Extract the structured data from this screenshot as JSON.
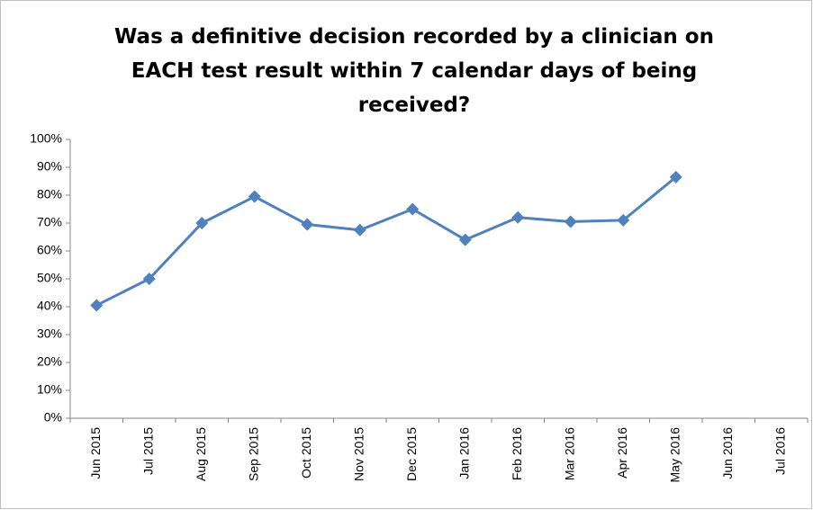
{
  "chart_data": {
    "type": "line",
    "title": "Was a definitive decision recorded by a clinician on EACH test result within 7 calendar days of being received?",
    "categories": [
      "Jun 2015",
      "Jul 2015",
      "Aug 2015",
      "Sep 2015",
      "Oct 2015",
      "Nov 2015",
      "Dec 2015",
      "Jan 2016",
      "Feb 2016",
      "Mar 2016",
      "Apr 2016",
      "May 2016",
      "Jun 2016",
      "Jul 2016"
    ],
    "series": [
      {
        "color": "#4f81bd",
        "values": [
          40.5,
          50,
          70,
          79.5,
          69.5,
          67.5,
          75,
          64,
          72,
          70.5,
          71,
          86.5,
          null,
          null
        ]
      }
    ],
    "ylim": [
      0,
      100
    ],
    "yticks": [
      {
        "value": 0,
        "label": "0%"
      },
      {
        "value": 10,
        "label": "10%"
      },
      {
        "value": 20,
        "label": "20%"
      },
      {
        "value": 30,
        "label": "30%"
      },
      {
        "value": 40,
        "label": "40%"
      },
      {
        "value": 50,
        "label": "50%"
      },
      {
        "value": 60,
        "label": "60%"
      },
      {
        "value": 70,
        "label": "70%"
      },
      {
        "value": 80,
        "label": "80%"
      },
      {
        "value": 90,
        "label": "90%"
      },
      {
        "value": 100,
        "label": "100%"
      }
    ],
    "grid": false
  }
}
